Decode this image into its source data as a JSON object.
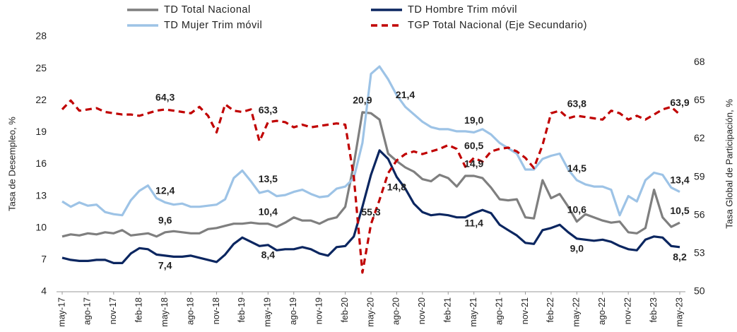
{
  "chart_data": {
    "type": "line",
    "y_label": "Tasa de Desempleo, %",
    "y2_label": "Tasa Global de Participación, %",
    "categories": [
      "may-17",
      null,
      null,
      "ago-17",
      null,
      null,
      "nov-17",
      null,
      null,
      "feb-18",
      null,
      null,
      "may-18",
      null,
      null,
      "ago-18",
      null,
      null,
      "nov-18",
      null,
      null,
      "feb-19",
      null,
      null,
      "may-19",
      null,
      null,
      "ago-19",
      null,
      null,
      "nov-19",
      null,
      null,
      "feb-20",
      null,
      null,
      "may-20",
      null,
      null,
      "ago-20",
      null,
      null,
      "nov-20",
      null,
      null,
      "feb-21",
      null,
      null,
      "may-21",
      null,
      null,
      "ago-21",
      null,
      null,
      "nov-21",
      null,
      null,
      "feb-22",
      null,
      null,
      "may-22",
      null,
      null,
      "ago-22",
      null,
      null,
      "nov-22",
      null,
      null,
      "feb-23",
      null,
      null,
      "may-23"
    ],
    "ylim": [
      4,
      28
    ],
    "yticks": [
      4,
      7,
      10,
      13,
      16,
      19,
      22,
      25,
      28
    ],
    "y2lim": [
      50,
      70
    ],
    "y2ticks": [
      50,
      53,
      56,
      59,
      62,
      65,
      68
    ],
    "series": [
      {
        "name": "TD Total Nacional",
        "color": "#7f7f7f",
        "dash": false,
        "values": [
          9.2,
          9.4,
          9.3,
          9.5,
          9.4,
          9.6,
          9.5,
          9.8,
          9.3,
          9.4,
          9.5,
          9.2,
          9.6,
          9.7,
          9.6,
          9.5,
          9.5,
          9.9,
          10.0,
          10.2,
          10.4,
          10.4,
          10.5,
          10.4,
          10.4,
          10.1,
          10.5,
          11.0,
          10.7,
          10.7,
          10.4,
          10.8,
          11.0,
          12.0,
          16.0,
          20.9,
          20.8,
          20.2,
          17.0,
          16.3,
          15.7,
          15.3,
          14.6,
          14.4,
          15.0,
          14.7,
          13.9,
          14.9,
          14.9,
          14.7,
          13.8,
          12.7,
          12.6,
          12.7,
          11.0,
          10.9,
          14.5,
          12.8,
          13.2,
          12.0,
          10.6,
          11.3,
          11.0,
          10.7,
          10.5,
          10.6,
          9.6,
          9.5,
          10.0,
          13.6,
          11.0,
          10.1,
          10.5
        ],
        "value_labels": [
          null,
          null,
          null,
          null,
          null,
          null,
          null,
          null,
          null,
          null,
          null,
          null,
          "9,6",
          null,
          null,
          null,
          null,
          null,
          null,
          null,
          null,
          null,
          null,
          null,
          "10,4",
          null,
          null,
          null,
          null,
          null,
          null,
          null,
          null,
          null,
          null,
          "20,9",
          null,
          null,
          null,
          null,
          null,
          null,
          null,
          null,
          null,
          null,
          null,
          null,
          "14,9",
          null,
          null,
          null,
          null,
          null,
          null,
          null,
          null,
          null,
          null,
          null,
          "10,6",
          null,
          null,
          null,
          null,
          null,
          null,
          null,
          null,
          null,
          null,
          null,
          "10,5"
        ]
      },
      {
        "name": "TD Hombre Trim móvil",
        "color": "#0b2660",
        "dash": false,
        "values": [
          7.2,
          7.0,
          6.9,
          6.9,
          7.0,
          7.0,
          6.7,
          6.7,
          7.6,
          8.1,
          8.0,
          7.5,
          7.4,
          7.3,
          7.3,
          7.4,
          7.2,
          7.0,
          6.8,
          7.5,
          8.5,
          9.1,
          8.7,
          8.3,
          8.4,
          7.9,
          8.0,
          8.0,
          8.2,
          8.0,
          7.6,
          7.4,
          8.2,
          8.3,
          9.2,
          12.0,
          15.0,
          17.3,
          16.5,
          14.8,
          13.7,
          12.3,
          11.5,
          11.2,
          11.3,
          11.2,
          11.0,
          11.0,
          11.4,
          11.7,
          11.4,
          10.3,
          9.8,
          9.3,
          8.6,
          8.5,
          9.8,
          10.0,
          10.3,
          9.6,
          9.0,
          8.9,
          8.8,
          8.9,
          8.7,
          8.3,
          8.0,
          7.9,
          8.9,
          9.2,
          9.1,
          8.3,
          8.2
        ],
        "value_labels": [
          null,
          null,
          null,
          null,
          null,
          null,
          null,
          null,
          null,
          null,
          null,
          null,
          "7,4",
          null,
          null,
          null,
          null,
          null,
          null,
          null,
          null,
          null,
          null,
          null,
          "8,4",
          null,
          null,
          null,
          null,
          null,
          null,
          null,
          null,
          null,
          null,
          null,
          null,
          null,
          null,
          "14,8",
          null,
          null,
          null,
          null,
          null,
          null,
          null,
          null,
          "11,4",
          null,
          null,
          null,
          null,
          null,
          null,
          null,
          null,
          null,
          null,
          null,
          "9,0",
          null,
          null,
          null,
          null,
          null,
          null,
          null,
          null,
          null,
          null,
          null,
          "8,2"
        ]
      },
      {
        "name": "TD Mujer Trim móvil",
        "color": "#9dc3e6",
        "dash": false,
        "values": [
          12.5,
          12.0,
          12.4,
          12.1,
          12.2,
          11.5,
          11.3,
          11.2,
          12.6,
          13.5,
          14.0,
          12.8,
          12.4,
          12.2,
          12.3,
          12.0,
          12.0,
          12.1,
          12.2,
          12.7,
          14.7,
          15.4,
          14.4,
          13.3,
          13.5,
          13.0,
          13.1,
          13.4,
          13.6,
          13.2,
          12.9,
          13.0,
          13.7,
          13.9,
          14.7,
          18.0,
          24.5,
          25.2,
          24.0,
          22.5,
          21.4,
          20.7,
          20.0,
          19.5,
          19.3,
          19.3,
          19.1,
          19.1,
          19.0,
          19.3,
          18.8,
          18.0,
          17.5,
          17.0,
          15.5,
          15.5,
          16.5,
          16.8,
          17.0,
          15.5,
          14.5,
          14.1,
          13.9,
          13.9,
          13.6,
          11.2,
          13.0,
          12.5,
          14.5,
          15.2,
          15.0,
          13.8,
          13.4
        ],
        "value_labels": [
          null,
          null,
          null,
          null,
          null,
          null,
          null,
          null,
          null,
          null,
          null,
          null,
          "12,4",
          null,
          null,
          null,
          null,
          null,
          null,
          null,
          null,
          null,
          null,
          null,
          "13,5",
          null,
          null,
          null,
          null,
          null,
          null,
          null,
          null,
          null,
          null,
          null,
          null,
          null,
          null,
          null,
          "21,4",
          null,
          null,
          null,
          null,
          null,
          null,
          null,
          "19,0",
          null,
          null,
          null,
          null,
          null,
          null,
          null,
          null,
          null,
          null,
          null,
          "14,5",
          null,
          null,
          null,
          null,
          null,
          null,
          null,
          null,
          null,
          null,
          null,
          "13,4"
        ]
      },
      {
        "name": "TGP Total Nacional (Eje Secundario)",
        "color": "#c00000",
        "dash": true,
        "axis": "y2",
        "values": [
          64.3,
          65.0,
          64.2,
          64.3,
          64.4,
          64.1,
          64.0,
          63.9,
          63.9,
          63.8,
          64.0,
          64.2,
          64.3,
          64.2,
          64.1,
          64.0,
          64.5,
          63.8,
          62.5,
          64.7,
          64.2,
          64.1,
          64.3,
          61.8,
          63.3,
          63.4,
          63.3,
          62.9,
          63.1,
          62.9,
          63.0,
          63.1,
          63.2,
          63.1,
          59.0,
          51.5,
          55.3,
          57.2,
          59.3,
          60.3,
          60.8,
          61.0,
          60.8,
          61.0,
          61.2,
          61.5,
          61.2,
          59.8,
          60.5,
          60.2,
          61.0,
          61.2,
          61.3,
          61.0,
          60.5,
          59.7,
          61.5,
          64.0,
          64.2,
          63.6,
          63.8,
          63.7,
          63.6,
          63.5,
          64.2,
          64.0,
          63.5,
          63.8,
          63.5,
          63.9,
          64.3,
          64.5,
          63.9
        ],
        "value_labels": [
          null,
          null,
          null,
          null,
          null,
          null,
          null,
          null,
          null,
          null,
          null,
          null,
          "64,3",
          null,
          null,
          null,
          null,
          null,
          null,
          null,
          null,
          null,
          null,
          null,
          "63,3",
          null,
          null,
          null,
          null,
          null,
          null,
          null,
          null,
          null,
          null,
          null,
          "55,3",
          null,
          null,
          null,
          null,
          null,
          null,
          null,
          null,
          null,
          null,
          null,
          "60,5",
          null,
          null,
          null,
          null,
          null,
          null,
          null,
          null,
          null,
          null,
          null,
          "63,8",
          null,
          null,
          null,
          null,
          null,
          null,
          null,
          null,
          null,
          null,
          null,
          "63,9"
        ]
      }
    ]
  }
}
